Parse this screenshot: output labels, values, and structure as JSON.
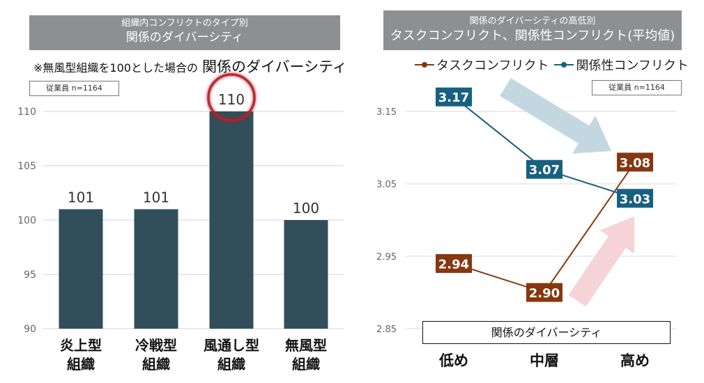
{
  "colors": {
    "header_bg": "#8e8f91",
    "bar": "#324e5a",
    "highlight_circle": "#b5202c",
    "task_conflict": "#86370f",
    "relationship_conflict": "#18607f",
    "arrow_down": "#c3d7e0",
    "arrow_up": "#f5d3d6"
  },
  "left": {
    "header_sub": "組織内コンフリクトのタイプ別",
    "header_main": "関係のダイバーシティ",
    "note": "※無風型組織を100とした場合の",
    "note_emphasis": "関係のダイバーシティ",
    "sample_size": "従業員 n=1164"
  },
  "right": {
    "header_sub": "関係のダイバーシティの高低別",
    "header_main": "タスクコンフリクト、関係性コンフリクト(平均値)",
    "sample_size": "従業員 n=1164",
    "x_axis_title": "関係のダイバーシティ"
  },
  "chart_data": [
    {
      "type": "bar",
      "title": "関係のダイバーシティ",
      "categories": [
        "炎上型\n組織",
        "冷戦型\n組織",
        "風通し型\n組織",
        "無風型\n組織"
      ],
      "category_lines": [
        [
          "炎上型",
          "組織"
        ],
        [
          "冷戦型",
          "組織"
        ],
        [
          "風通し型",
          "組織"
        ],
        [
          "無風型",
          "組織"
        ]
      ],
      "values": [
        101,
        101,
        110,
        100
      ],
      "value_labels": [
        "101",
        "101",
        "110",
        "100"
      ],
      "highlighted_index": 2,
      "ylim": [
        90,
        110
      ],
      "yticks": [
        90,
        95,
        100,
        105,
        110
      ],
      "ytick_labels": [
        "90",
        "95",
        "100",
        "105",
        "110"
      ],
      "grid": true,
      "xlabel": "",
      "ylabel": ""
    },
    {
      "type": "line",
      "title": "タスクコンフリクト、関係性コンフリクト(平均値)",
      "categories": [
        "低め",
        "中層",
        "高め"
      ],
      "series": [
        {
          "name": "タスクコンフリクト",
          "values": [
            2.94,
            2.9,
            3.08
          ],
          "labels": [
            "2.94",
            "2.90",
            "3.08"
          ]
        },
        {
          "name": "関係性コンフリクト",
          "values": [
            3.17,
            3.07,
            3.03
          ],
          "labels": [
            "3.17",
            "3.07",
            "3.03"
          ]
        }
      ],
      "ylim": [
        2.85,
        3.15
      ],
      "yticks": [
        2.85,
        2.95,
        3.05,
        3.15
      ],
      "ytick_labels": [
        "2.85",
        "2.95",
        "3.05",
        "3.15"
      ],
      "grid": true,
      "legend_position": "top",
      "xlabel": "関係のダイバーシティ",
      "ylabel": "",
      "annotations": [
        "relationship-conflict-decreasing-arrow",
        "task-conflict-increasing-arrow"
      ]
    }
  ]
}
